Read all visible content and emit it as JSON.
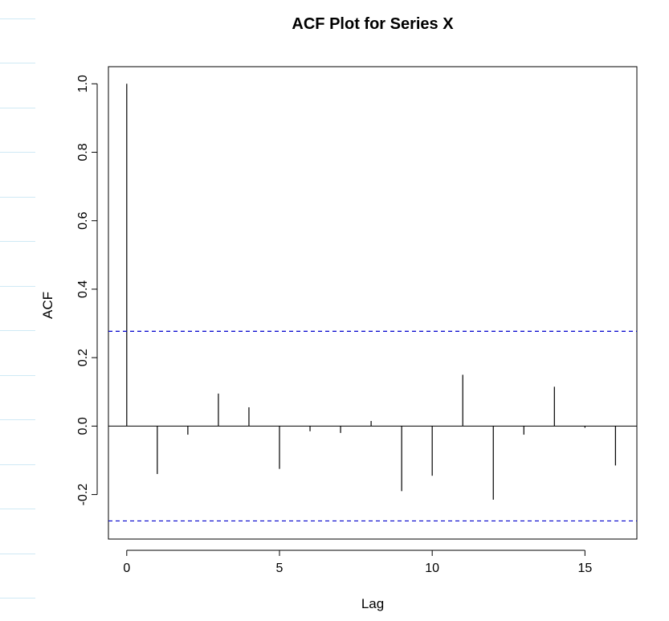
{
  "chart_data": {
    "type": "bar",
    "title": "ACF Plot for Series X",
    "xlabel": "Lag",
    "ylabel": "ACF",
    "xlim": [
      -0.6,
      16.7
    ],
    "ylim": [
      -0.33,
      1.05
    ],
    "x_ticks": [
      0,
      5,
      10,
      15
    ],
    "x_tick_labels": [
      "0",
      "5",
      "10",
      "15"
    ],
    "y_ticks": [
      -0.2,
      0.0,
      0.2,
      0.4,
      0.6,
      0.8,
      1.0
    ],
    "y_tick_labels": [
      "-0.2",
      "0.0",
      "0.2",
      "0.4",
      "0.6",
      "0.8",
      "1.0"
    ],
    "lags": [
      0,
      1,
      2,
      3,
      4,
      5,
      6,
      7,
      8,
      9,
      10,
      11,
      12,
      13,
      14,
      15,
      16
    ],
    "values": [
      1.0,
      -0.14,
      -0.025,
      0.095,
      0.055,
      -0.125,
      -0.015,
      -0.02,
      0.015,
      -0.19,
      -0.145,
      0.15,
      -0.215,
      -0.025,
      0.115,
      -0.005,
      -0.115
    ],
    "confidence_bounds": [
      0.277,
      -0.277
    ],
    "bound_color": "#0000cc",
    "spike_color": "#000000",
    "zero_line": true,
    "grid": false,
    "legend": "none"
  }
}
